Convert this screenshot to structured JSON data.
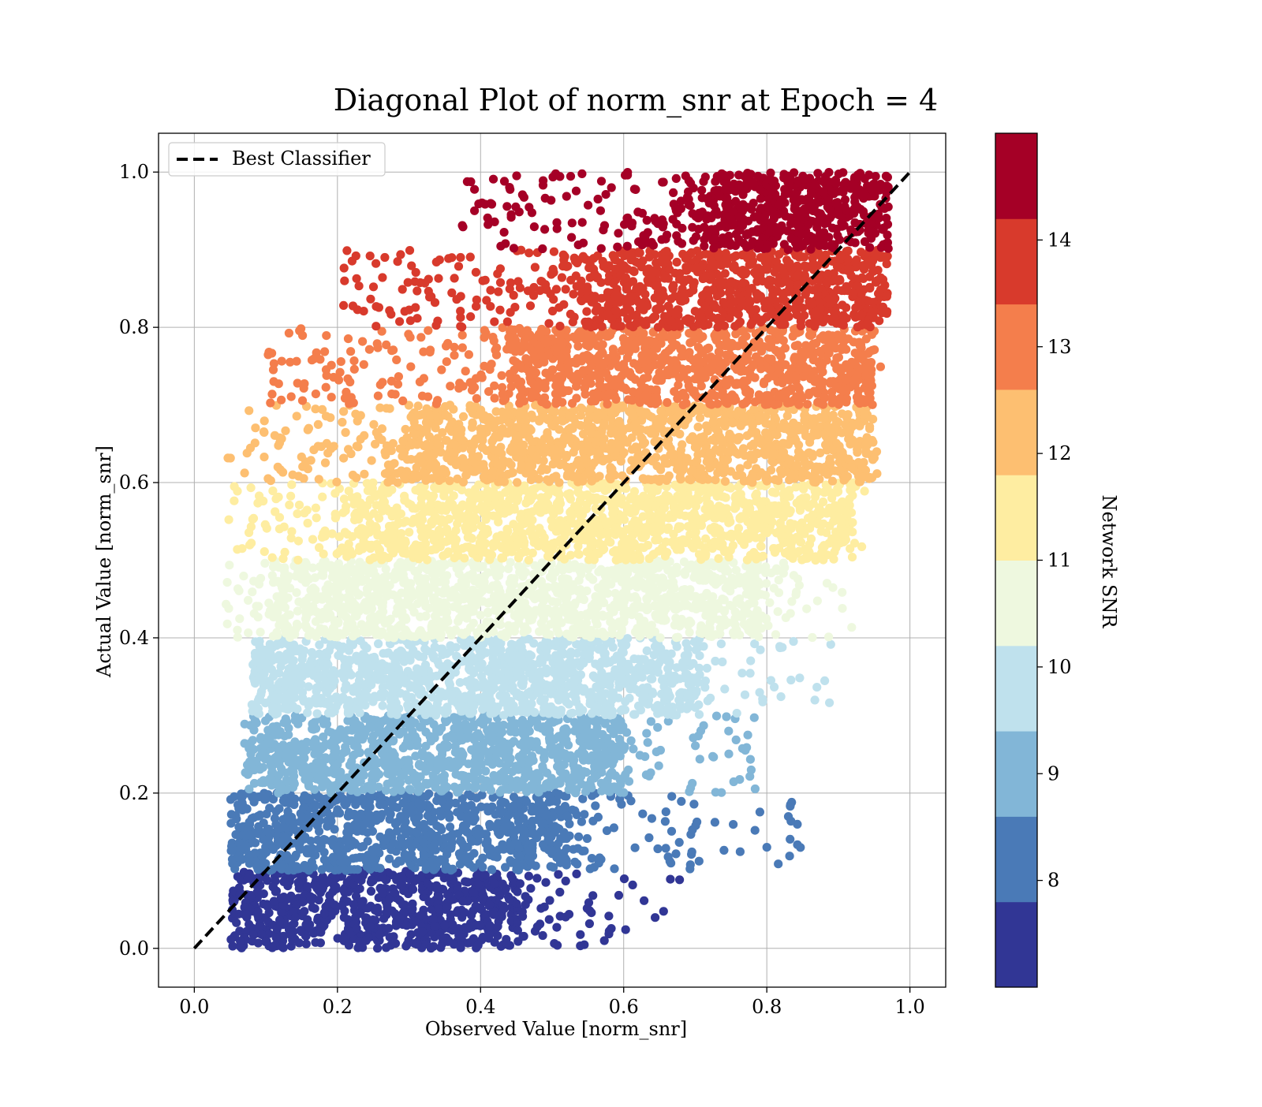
{
  "chart_data": {
    "type": "scatter",
    "title": "Diagonal Plot of norm_snr at Epoch = 4",
    "xlabel": "Observed Value [norm_snr]",
    "ylabel": "Actual Value [norm_snr]",
    "xlim": [
      -0.05,
      1.05
    ],
    "ylim": [
      -0.05,
      1.05
    ],
    "xticks": [
      "0.0",
      "0.2",
      "0.4",
      "0.6",
      "0.8",
      "1.0"
    ],
    "yticks": [
      "0.0",
      "0.2",
      "0.4",
      "0.6",
      "0.8",
      "1.0"
    ],
    "grid": true,
    "legend": {
      "position": "top-left",
      "entries": [
        "Best Classifier"
      ]
    },
    "reference_line": {
      "name": "Best Classifier",
      "style": "dashed",
      "color": "#000000",
      "from": [
        0,
        0
      ],
      "to": [
        1,
        1
      ]
    },
    "colorbar": {
      "label": "Network SNR",
      "range": [
        7,
        15
      ],
      "ticks": [
        "8",
        "9",
        "10",
        "11",
        "12",
        "13",
        "14"
      ],
      "colormap": "RdYlBu_r",
      "colors": [
        "#313695",
        "#4575b4",
        "#74add1",
        "#abd9e9",
        "#e0f3f8",
        "#fee090",
        "#fdae61",
        "#f46d43",
        "#d73027",
        "#a50026"
      ],
      "band_colors": [
        "#313695",
        "#4a7ab7",
        "#82b6d7",
        "#bfe1ed",
        "#eef8df",
        "#feeda1",
        "#fdbf71",
        "#f47e4c",
        "#d83a2c",
        "#a50026"
      ]
    },
    "bands": [
      {
        "snr": 7.4,
        "y_range": [
          0.0,
          0.1
        ],
        "x_core": [
          0.05,
          0.45
        ],
        "x_max": 0.68
      },
      {
        "snr": 8.2,
        "y_range": [
          0.1,
          0.2
        ],
        "x_core": [
          0.05,
          0.52
        ],
        "x_max": 0.86
      },
      {
        "snr": 9.0,
        "y_range": [
          0.2,
          0.3
        ],
        "x_core": [
          0.07,
          0.6
        ],
        "x_max": 0.8
      },
      {
        "snr": 9.8,
        "y_range": [
          0.3,
          0.4
        ],
        "x_core": [
          0.08,
          0.7
        ],
        "x_max": 0.89
      },
      {
        "snr": 10.6,
        "y_range": [
          0.4,
          0.5
        ],
        "x_core": [
          0.11,
          0.8
        ],
        "x_max": 0.92
      },
      {
        "snr": 11.4,
        "y_range": [
          0.5,
          0.6
        ],
        "x_core": [
          0.22,
          0.92
        ],
        "x_max": 0.94
      },
      {
        "snr": 12.2,
        "y_range": [
          0.6,
          0.7
        ],
        "x_core": [
          0.3,
          0.95
        ],
        "x_max": 0.96
      },
      {
        "snr": 13.0,
        "y_range": [
          0.7,
          0.8
        ],
        "x_core": [
          0.45,
          0.95
        ],
        "x_max": 0.96
      },
      {
        "snr": 13.8,
        "y_range": [
          0.8,
          0.9
        ],
        "x_core": [
          0.55,
          0.97
        ],
        "x_max": 0.97
      },
      {
        "snr": 14.6,
        "y_range": [
          0.9,
          1.0
        ],
        "x_core": [
          0.72,
          0.97
        ],
        "x_max": 0.97
      }
    ]
  }
}
